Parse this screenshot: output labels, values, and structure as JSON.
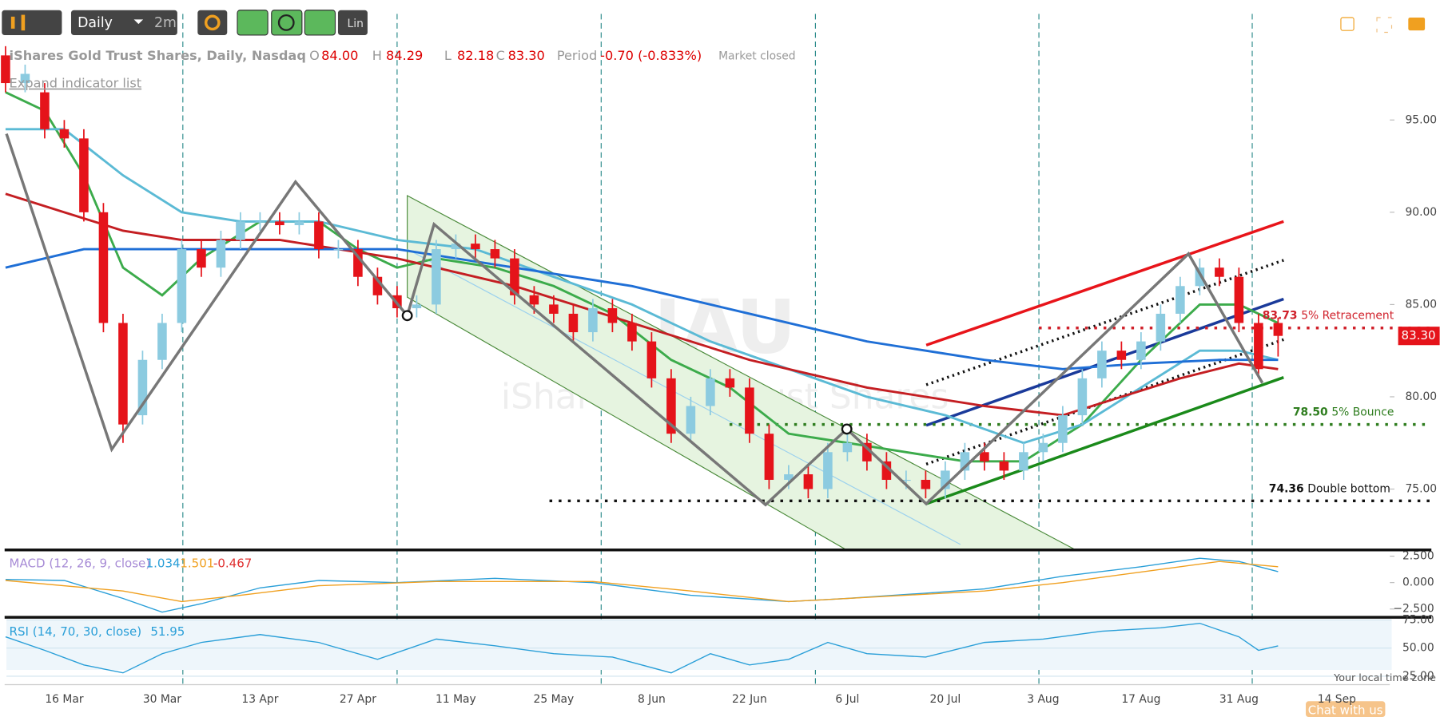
{
  "header": {
    "toolbar_interval": "Daily",
    "toolbar_range": "2m",
    "toolbar_scale": "Lin",
    "symbol": "iShares Gold Trust Shares, Daily, Nasdaq",
    "open_label": "O",
    "open": "84.00",
    "high_label": "H",
    "high": "84.29",
    "low_label": "L",
    "low": "82.18",
    "close_label": "C",
    "close": "83.30",
    "period_label": "Period",
    "period": "-0.70 (-0.833%)",
    "status": "Market closed",
    "expand": "Expand indicator list",
    "watermark_symbol": "IAU",
    "watermark_name": "iShares Gold Trust Shares",
    "timezone": "Your local time zone",
    "chat": "Chat with us"
  },
  "chart_data": {
    "type": "candlestick",
    "categories": [
      null,
      null,
      null,
      "16 Mar",
      null,
      null,
      null,
      null,
      "30 Mar",
      null,
      null,
      null,
      null,
      "13 Apr",
      null,
      null,
      null,
      null,
      "27 Apr",
      null,
      null,
      null,
      null,
      "11 May",
      null,
      null,
      null,
      null,
      "25 May",
      null,
      null,
      null,
      null,
      "8 Jun",
      null,
      null,
      null,
      null,
      "22 Jun",
      null,
      null,
      null,
      null,
      "6 Jul",
      null,
      null,
      null,
      null,
      "20 Jul",
      null,
      null,
      null,
      null,
      "3 Aug",
      null,
      null,
      null,
      null,
      "17 Aug",
      null,
      null,
      null,
      null,
      "31 Aug",
      null,
      null,
      null,
      null,
      "14 Sep",
      null
    ],
    "open": [
      98.5,
      97,
      96.5,
      94.5,
      94,
      90,
      84,
      79,
      82,
      84,
      88,
      87,
      88.5,
      89.5,
      89.5,
      89.3,
      89.5,
      88,
      88,
      86.5,
      85.5,
      84.8,
      85,
      88,
      88.3,
      88,
      87.5,
      85.5,
      85,
      84.5,
      83.5,
      84.8,
      84,
      83,
      81,
      78,
      79.5,
      81,
      80.5,
      78,
      75.5,
      75.8,
      75,
      77,
      77.5,
      76.5,
      75.5,
      75.5,
      75,
      76,
      77,
      76.5,
      76,
      77,
      77.5,
      79,
      81,
      82.5,
      82,
      83,
      84.5,
      86,
      87,
      86.5,
      84,
      84,
      null,
      null,
      null,
      null
    ],
    "high": [
      99,
      98,
      97,
      95,
      94.5,
      90.5,
      84.5,
      82.5,
      84.5,
      88.5,
      88.5,
      89,
      90,
      90,
      90,
      90,
      90,
      88.5,
      88.5,
      87,
      86,
      85.5,
      88.5,
      88.8,
      88.8,
      88.5,
      88,
      86,
      85.5,
      85,
      85.3,
      85.3,
      84.5,
      83.5,
      81.5,
      80,
      81.5,
      81.5,
      81,
      78.5,
      76.3,
      76.3,
      77.5,
      78,
      78,
      77,
      76,
      76,
      76.5,
      77.5,
      77.5,
      77,
      77.5,
      78,
      79.5,
      81.5,
      83,
      83,
      83.5,
      85,
      86.5,
      87.5,
      87.5,
      87,
      84.5,
      84.29,
      null,
      null,
      null,
      null
    ],
    "low": [
      96.5,
      96.5,
      94,
      93.5,
      89.5,
      83.5,
      77.5,
      78.5,
      81.5,
      83.5,
      86.5,
      86.5,
      88,
      89,
      88.8,
      88.8,
      87.5,
      87.5,
      86,
      85,
      84.3,
      84.3,
      84.5,
      87.5,
      87.5,
      87,
      85,
      84.5,
      84,
      83,
      83,
      83.5,
      82.5,
      80.5,
      77.5,
      77.5,
      79,
      80,
      77.5,
      75,
      75,
      74.5,
      74.5,
      76.5,
      76,
      75,
      75,
      74.5,
      74.5,
      75.5,
      76,
      75.5,
      75.5,
      76.5,
      77,
      78.5,
      80.5,
      81.5,
      81.5,
      82.5,
      84,
      85.5,
      86,
      83.5,
      81,
      82.18,
      null,
      null,
      null,
      null
    ],
    "close": [
      97,
      97.5,
      94.5,
      94,
      90,
      84,
      78.5,
      82,
      84,
      88,
      87,
      88.5,
      89.5,
      89.5,
      89.3,
      89.5,
      88,
      88,
      86.5,
      85.5,
      84.8,
      85,
      88,
      88.3,
      88,
      87.5,
      85.5,
      85,
      84.5,
      83.5,
      84.8,
      84,
      83,
      81,
      78,
      79.5,
      81,
      80.5,
      78,
      75.5,
      75.8,
      75,
      77,
      77.5,
      76.5,
      75.5,
      75.5,
      75,
      76,
      77,
      76.5,
      76,
      77,
      77.5,
      79,
      81,
      82.5,
      82,
      83,
      84.5,
      86,
      87,
      86.5,
      84,
      81.5,
      83.3,
      null,
      null,
      null,
      null
    ],
    "up_color": "#8ccbe0",
    "down_color": "#e5131a",
    "ylim": [
      71.75,
      99.25
    ],
    "yticks": [
      {
        "value": 95,
        "label": "95.00"
      },
      {
        "value": 90,
        "label": "90.00"
      },
      {
        "value": 85,
        "label": "85.00"
      },
      {
        "value": 80,
        "label": "80.00"
      },
      {
        "value": 75,
        "label": "75.00"
      }
    ],
    "last_price": {
      "value": 83.3,
      "label": "83.30"
    },
    "levels": [
      {
        "value": 83.73,
        "label": "83.73",
        "text": "5% Retracement",
        "color": "#d0202a"
      },
      {
        "value": 78.5,
        "label": "78.50",
        "text": "5% Bounce",
        "color": "#2e7d1e"
      },
      {
        "value": 74.36,
        "label": "74.36",
        "text": "Double bottom",
        "color": "#111111"
      }
    ],
    "overlays": [
      {
        "color": "#3cab4b",
        "points": [
          [
            0,
            96.5
          ],
          [
            2,
            95.5
          ],
          [
            4,
            92
          ],
          [
            6,
            87
          ],
          [
            8,
            85.5
          ],
          [
            10,
            87.5
          ],
          [
            13,
            89.5
          ],
          [
            16,
            89.5
          ],
          [
            18,
            88
          ],
          [
            20,
            87
          ],
          [
            22,
            87.5
          ],
          [
            25,
            87
          ],
          [
            28,
            86
          ],
          [
            31,
            84.5
          ],
          [
            34,
            82
          ],
          [
            37,
            80.5
          ],
          [
            40,
            78
          ],
          [
            43,
            77.5
          ],
          [
            46,
            77
          ],
          [
            49,
            76.5
          ],
          [
            52,
            76.5
          ],
          [
            55,
            78.5
          ],
          [
            58,
            82
          ],
          [
            61,
            85
          ],
          [
            63,
            85
          ],
          [
            65,
            84
          ]
        ]
      },
      {
        "color": "#5bbad5",
        "points": [
          [
            0,
            94.5
          ],
          [
            3,
            94.5
          ],
          [
            6,
            92
          ],
          [
            9,
            90
          ],
          [
            12,
            89.5
          ],
          [
            16,
            89.5
          ],
          [
            20,
            88.5
          ],
          [
            24,
            88
          ],
          [
            28,
            86.5
          ],
          [
            32,
            85
          ],
          [
            36,
            83
          ],
          [
            40,
            81.5
          ],
          [
            44,
            80
          ],
          [
            48,
            79
          ],
          [
            52,
            77.5
          ],
          [
            55,
            78.5
          ],
          [
            58,
            80.5
          ],
          [
            61,
            82.5
          ],
          [
            63,
            82.5
          ],
          [
            65,
            82
          ]
        ]
      },
      {
        "color": "#c41e22",
        "points": [
          [
            0,
            91
          ],
          [
            3,
            90
          ],
          [
            6,
            89
          ],
          [
            9,
            88.5
          ],
          [
            14,
            88.5
          ],
          [
            20,
            87.5
          ],
          [
            26,
            86
          ],
          [
            32,
            84
          ],
          [
            38,
            82
          ],
          [
            44,
            80.5
          ],
          [
            50,
            79.5
          ],
          [
            54,
            79
          ],
          [
            57,
            80
          ],
          [
            60,
            81
          ],
          [
            63,
            81.8
          ],
          [
            65,
            81.5
          ]
        ]
      },
      {
        "color": "#1f6fd6",
        "points": [
          [
            0,
            87
          ],
          [
            4,
            88
          ],
          [
            8,
            88
          ],
          [
            14,
            88
          ],
          [
            20,
            88
          ],
          [
            26,
            87
          ],
          [
            32,
            86
          ],
          [
            38,
            84.5
          ],
          [
            44,
            83
          ],
          [
            50,
            82
          ],
          [
            54,
            81.5
          ],
          [
            58,
            81.8
          ],
          [
            62,
            82
          ],
          [
            65,
            82
          ]
        ]
      }
    ],
    "macd": {
      "label": "MACD (12, 26, 9, close)",
      "macd_value": "1.034",
      "signal_value": "1.501",
      "hist_value": "-0.467",
      "ylim": [
        -3.2,
        3.0
      ],
      "yticks": [
        {
          "value": 2.5,
          "label": "2.500"
        },
        {
          "value": 0,
          "label": "0.000"
        },
        {
          "value": -2.5,
          "label": "−2.500"
        }
      ],
      "series": [
        {
          "color": "#2a9fd8",
          "points": [
            [
              0,
              0.3
            ],
            [
              3,
              0.2
            ],
            [
              6,
              -1.5
            ],
            [
              8,
              -2.8
            ],
            [
              10,
              -2
            ],
            [
              13,
              -0.5
            ],
            [
              16,
              0.2
            ],
            [
              20,
              0
            ],
            [
              25,
              0.4
            ],
            [
              30,
              0
            ],
            [
              35,
              -1.2
            ],
            [
              40,
              -1.8
            ],
            [
              43,
              -1.5
            ],
            [
              47,
              -1
            ],
            [
              50,
              -0.6
            ],
            [
              54,
              0.6
            ],
            [
              58,
              1.5
            ],
            [
              61,
              2.3
            ],
            [
              63,
              2
            ],
            [
              65,
              1.034
            ]
          ]
        },
        {
          "color": "#f0a020",
          "points": [
            [
              0,
              0.2
            ],
            [
              6,
              -0.8
            ],
            [
              9,
              -1.8
            ],
            [
              12,
              -1.2
            ],
            [
              16,
              -0.3
            ],
            [
              22,
              0.1
            ],
            [
              30,
              0.1
            ],
            [
              35,
              -0.8
            ],
            [
              40,
              -1.8
            ],
            [
              45,
              -1.3
            ],
            [
              50,
              -0.8
            ],
            [
              54,
              0
            ],
            [
              58,
              1
            ],
            [
              62,
              2
            ],
            [
              65,
              1.501
            ]
          ]
        }
      ]
    },
    "rsi": {
      "label": "RSI (14, 70, 30, close)",
      "value_text": "51.95",
      "ylim": [
        17.5,
        76.5
      ],
      "yticks": [
        {
          "value": 75,
          "label": "75.00"
        },
        {
          "value": 50,
          "label": "50.00"
        },
        {
          "value": 25,
          "label": "25.00"
        }
      ],
      "color": "#2a9fd8",
      "points": [
        [
          0,
          60
        ],
        [
          2,
          48
        ],
        [
          4,
          35
        ],
        [
          6,
          28
        ],
        [
          8,
          45
        ],
        [
          10,
          55
        ],
        [
          13,
          62
        ],
        [
          16,
          55
        ],
        [
          19,
          40
        ],
        [
          22,
          58
        ],
        [
          25,
          52
        ],
        [
          28,
          45
        ],
        [
          31,
          42
        ],
        [
          34,
          28
        ],
        [
          36,
          45
        ],
        [
          38,
          35
        ],
        [
          40,
          40
        ],
        [
          42,
          55
        ],
        [
          44,
          45
        ],
        [
          47,
          42
        ],
        [
          50,
          55
        ],
        [
          53,
          58
        ],
        [
          56,
          65
        ],
        [
          59,
          68
        ],
        [
          61,
          72
        ],
        [
          63,
          60
        ],
        [
          64,
          48
        ],
        [
          65,
          51.95
        ]
      ]
    }
  }
}
